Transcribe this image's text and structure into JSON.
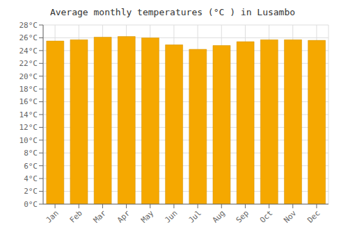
{
  "chart_data": {
    "type": "bar",
    "title": "Average monthly temperatures (°C ) in Lusambo",
    "categories": [
      "Jan",
      "Feb",
      "Mar",
      "Apr",
      "May",
      "Jun",
      "Jul",
      "Aug",
      "Sep",
      "Oct",
      "Nov",
      "Dec"
    ],
    "values": [
      25.5,
      25.7,
      26.1,
      26.2,
      26.0,
      24.9,
      24.2,
      24.8,
      25.4,
      25.7,
      25.7,
      25.6
    ],
    "color": "#F5A800",
    "ylim": [
      0,
      28
    ],
    "yticks": [
      {
        "value": 0,
        "label": "0°C"
      },
      {
        "value": 2,
        "label": "2°C"
      },
      {
        "value": 4,
        "label": "4°C"
      },
      {
        "value": 6,
        "label": "6°C"
      },
      {
        "value": 8,
        "label": "8°C"
      },
      {
        "value": 10,
        "label": "10°C"
      },
      {
        "value": 12,
        "label": "12°C"
      },
      {
        "value": 14,
        "label": "14°C"
      },
      {
        "value": 16,
        "label": "16°C"
      },
      {
        "value": 18,
        "label": "18°C"
      },
      {
        "value": 20,
        "label": "20°C"
      },
      {
        "value": 22,
        "label": "22°C"
      },
      {
        "value": 24,
        "label": "24°C"
      },
      {
        "value": 26,
        "label": "26°C"
      },
      {
        "value": 28,
        "label": "28°C"
      }
    ],
    "grid": true
  }
}
